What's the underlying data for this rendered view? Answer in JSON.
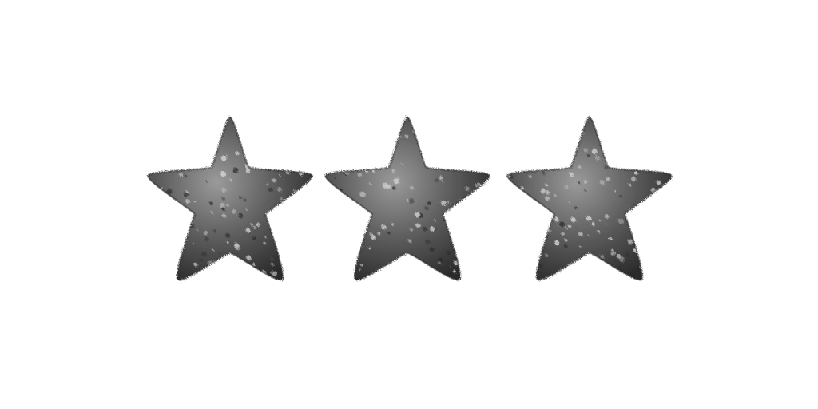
{
  "stars": {
    "count": 3,
    "icon": "star-icon",
    "colors": {
      "body": "#5b5b5b",
      "shadow": "#2c2c2c",
      "highlight": "#9a9a9a",
      "speckle": "#d6d6d6",
      "background": "#ffffff"
    }
  }
}
